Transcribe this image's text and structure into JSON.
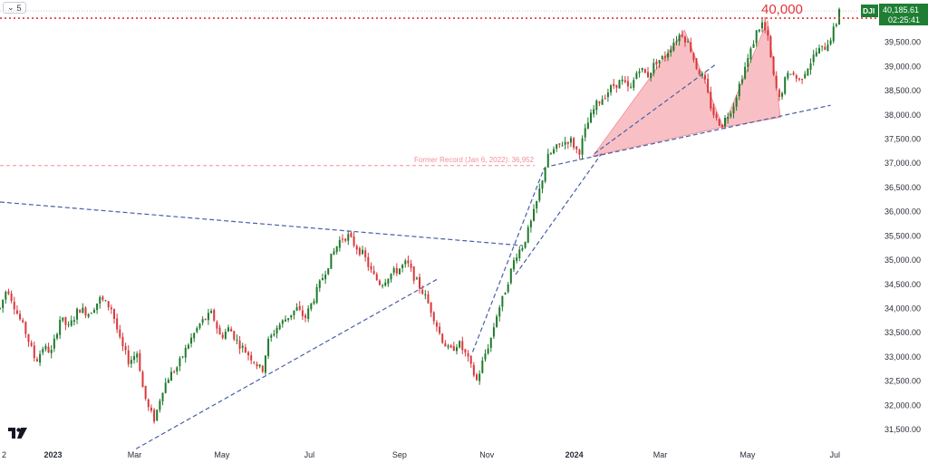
{
  "toolbar": {
    "interval_label": "5"
  },
  "chart_data": {
    "type": "candlestick",
    "symbol": "DJI",
    "price_label": "40,185.61",
    "countdown_label": "02:25:41",
    "threshold_value": 40000,
    "threshold_tag": "40,000.00",
    "threshold_annotation": "40,000",
    "former_record_annotation": "Former Record (Jan 6, 2022): 36,952",
    "former_record_value": 36952,
    "ylim": [
      31200,
      40300
    ],
    "y_ticks": [
      31500,
      32000,
      32500,
      33000,
      33500,
      34000,
      34500,
      35000,
      35500,
      36000,
      36500,
      37000,
      37500,
      38000,
      38500,
      39000,
      39500
    ],
    "y_tick_labels": [
      "31,500.00",
      "32,000.00",
      "32,500.00",
      "33,000.00",
      "33,500.00",
      "34,000.00",
      "34,500.00",
      "35,000.00",
      "35,500.00",
      "36,000.00",
      "36,500.00",
      "37,000.00",
      "37,500.00",
      "38,000.00",
      "38,500.00",
      "39,000.00",
      "39,500.00"
    ],
    "x_ticks": [
      {
        "label": "2",
        "day": 0,
        "bold": false
      },
      {
        "label": "2023",
        "day": 37,
        "bold": true
      },
      {
        "label": "Mar",
        "day": 94,
        "bold": false
      },
      {
        "label": "May",
        "day": 155,
        "bold": false
      },
      {
        "label": "Jul",
        "day": 216,
        "bold": false
      },
      {
        "label": "Sep",
        "day": 279,
        "bold": false
      },
      {
        "label": "Nov",
        "day": 340,
        "bold": false
      },
      {
        "label": "2024",
        "day": 401,
        "bold": true
      },
      {
        "label": "Mar",
        "day": 461,
        "bold": false
      },
      {
        "label": "May",
        "day": 522,
        "bold": false
      },
      {
        "label": "Jul",
        "day": 583,
        "bold": false
      }
    ],
    "price_path": [
      [
        0,
        34000
      ],
      [
        5,
        34450
      ],
      [
        12,
        33900
      ],
      [
        18,
        33500
      ],
      [
        25,
        32900
      ],
      [
        30,
        33200
      ],
      [
        36,
        33100
      ],
      [
        42,
        33800
      ],
      [
        48,
        33600
      ],
      [
        55,
        34000
      ],
      [
        62,
        33900
      ],
      [
        70,
        34200
      ],
      [
        78,
        34000
      ],
      [
        84,
        33300
      ],
      [
        90,
        32900
      ],
      [
        96,
        33100
      ],
      [
        100,
        32300
      ],
      [
        104,
        31900
      ],
      [
        108,
        31700
      ],
      [
        113,
        32300
      ],
      [
        118,
        32600
      ],
      [
        124,
        32800
      ],
      [
        132,
        33300
      ],
      [
        140,
        33700
      ],
      [
        148,
        33900
      ],
      [
        154,
        33400
      ],
      [
        160,
        33600
      ],
      [
        166,
        33300
      ],
      [
        172,
        33100
      ],
      [
        178,
        32900
      ],
      [
        183,
        32700
      ],
      [
        187,
        33300
      ],
      [
        193,
        33600
      ],
      [
        200,
        33800
      ],
      [
        207,
        34000
      ],
      [
        213,
        33800
      ],
      [
        219,
        34200
      ],
      [
        226,
        34700
      ],
      [
        232,
        35100
      ],
      [
        238,
        35450
      ],
      [
        243,
        35500
      ],
      [
        248,
        35300
      ],
      [
        254,
        35100
      ],
      [
        260,
        34700
      ],
      [
        266,
        34500
      ],
      [
        272,
        34700
      ],
      [
        278,
        34800
      ],
      [
        284,
        34950
      ],
      [
        290,
        34600
      ],
      [
        296,
        34300
      ],
      [
        302,
        33900
      ],
      [
        308,
        33400
      ],
      [
        314,
        33100
      ],
      [
        320,
        33300
      ],
      [
        326,
        33000
      ],
      [
        330,
        32700
      ],
      [
        333,
        32500
      ],
      [
        338,
        33000
      ],
      [
        343,
        33400
      ],
      [
        347,
        33900
      ],
      [
        351,
        34200
      ],
      [
        355,
        34600
      ],
      [
        360,
        35100
      ],
      [
        365,
        35300
      ],
      [
        370,
        35700
      ],
      [
        374,
        36100
      ],
      [
        378,
        36600
      ],
      [
        382,
        37100
      ],
      [
        386,
        37250
      ],
      [
        392,
        37400
      ],
      [
        398,
        37500
      ],
      [
        404,
        37200
      ],
      [
        410,
        37800
      ],
      [
        416,
        38200
      ],
      [
        422,
        38400
      ],
      [
        428,
        38600
      ],
      [
        434,
        38700
      ],
      [
        440,
        38500
      ],
      [
        446,
        39000
      ],
      [
        452,
        38800
      ],
      [
        458,
        39100
      ],
      [
        464,
        39200
      ],
      [
        470,
        39500
      ],
      [
        476,
        39700
      ],
      [
        482,
        39400
      ],
      [
        486,
        39000
      ],
      [
        492,
        38700
      ],
      [
        496,
        38200
      ],
      [
        500,
        37900
      ],
      [
        504,
        37800
      ],
      [
        508,
        38000
      ],
      [
        512,
        38200
      ],
      [
        518,
        38800
      ],
      [
        524,
        39300
      ],
      [
        528,
        39700
      ],
      [
        532,
        39900
      ],
      [
        536,
        39600
      ],
      [
        540,
        38800
      ],
      [
        544,
        38300
      ],
      [
        548,
        38700
      ],
      [
        552,
        38900
      ],
      [
        558,
        38700
      ],
      [
        564,
        39000
      ],
      [
        570,
        39300
      ],
      [
        576,
        39400
      ],
      [
        580,
        39600
      ],
      [
        584,
        39900
      ],
      [
        586,
        40185
      ]
    ],
    "candle_count": 295,
    "up_color": "#1f7a2c",
    "down_color": "#d9383a",
    "trendlines": [
      {
        "style": "dashed",
        "from": [
          0,
          36200
        ],
        "to": [
          365,
          35300
        ]
      },
      {
        "style": "dashed",
        "from": [
          95,
          31100
        ],
        "to": [
          305,
          34600
        ]
      },
      {
        "style": "dashed",
        "from": [
          330,
          33100
        ],
        "to": [
          380,
          36900
        ]
      },
      {
        "style": "dashed",
        "from": [
          360,
          34700
        ],
        "to": [
          420,
          37200
        ]
      },
      {
        "style": "dashed",
        "from": [
          385,
          36950
        ],
        "to": [
          580,
          38200
        ]
      },
      {
        "style": "dashed",
        "from": [
          415,
          37200
        ],
        "to": [
          500,
          39050
        ]
      }
    ],
    "triangles": [
      {
        "points": [
          [
            414,
            37150
          ],
          [
            478,
            39750
          ],
          [
            505,
            37750
          ]
        ]
      },
      {
        "points": [
          [
            505,
            37750
          ],
          [
            536,
            39950
          ],
          [
            545,
            37950
          ]
        ]
      }
    ],
    "colors": {
      "axis_text": "#2a2e39",
      "threshold": "#e0353a",
      "trendline": "#4a5fa8",
      "triangle_fill": "#f28c95",
      "price_tag_bg": "#1e7f34",
      "record_line": "#f0909a"
    },
    "logo": "tradingview-logo"
  }
}
